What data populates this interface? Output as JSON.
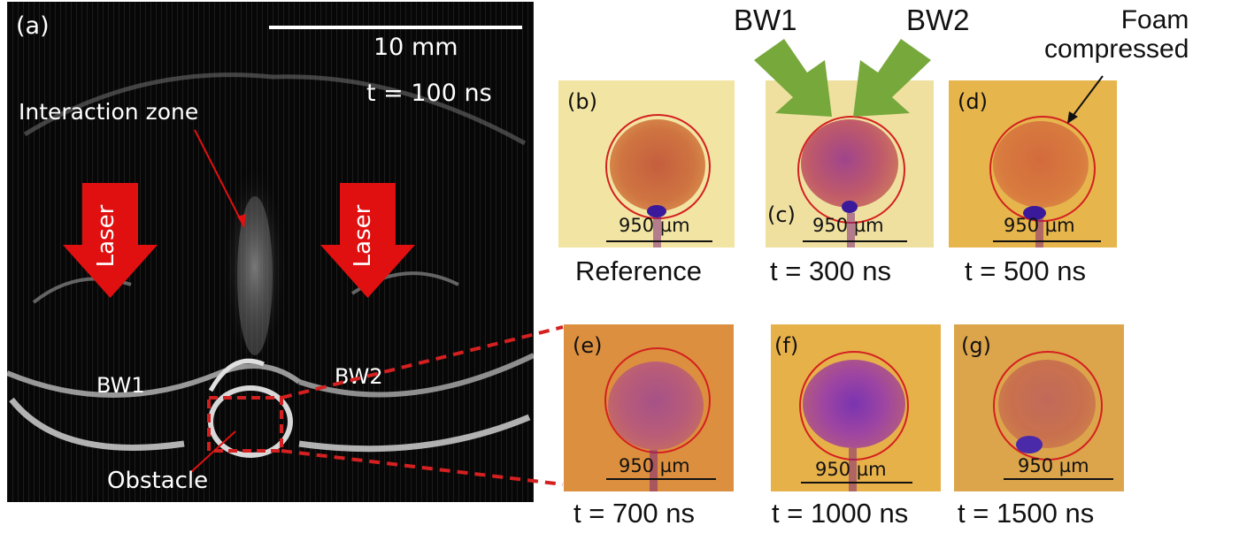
{
  "panel_a": {
    "label": "(a)",
    "scale_bar": "10 mm",
    "time": "t = 100 ns",
    "interaction_zone": "Interaction zone",
    "laser": "Laser",
    "bw1": "BW1",
    "bw2": "BW2",
    "obstacle": "Obstacle"
  },
  "top_labels": {
    "bw1": "BW1",
    "bw2": "BW2",
    "foam_line1": "Foam",
    "foam_line2": "compressed"
  },
  "panels": [
    {
      "id": "b",
      "label": "(b)",
      "scale": "950 µm",
      "caption": "Reference"
    },
    {
      "id": "c",
      "label": "(c)",
      "scale": "950 µm",
      "caption": "t = 300 ns"
    },
    {
      "id": "d",
      "label": "(d)",
      "scale": "950 µm",
      "caption": "t = 500 ns"
    },
    {
      "id": "e",
      "label": "(e)",
      "scale": "950 µm",
      "caption": "t = 700 ns"
    },
    {
      "id": "f",
      "label": "(f)",
      "scale": "950 µm",
      "caption": "t = 1000 ns"
    },
    {
      "id": "g",
      "label": "(g)",
      "scale": "950 µm",
      "caption": "t = 1500 ns"
    }
  ],
  "colors": {
    "laser_arrow": "#e01010",
    "bw_arrow": "#77a83c",
    "circle": "#d42020",
    "dashed_box": "#d42020"
  }
}
